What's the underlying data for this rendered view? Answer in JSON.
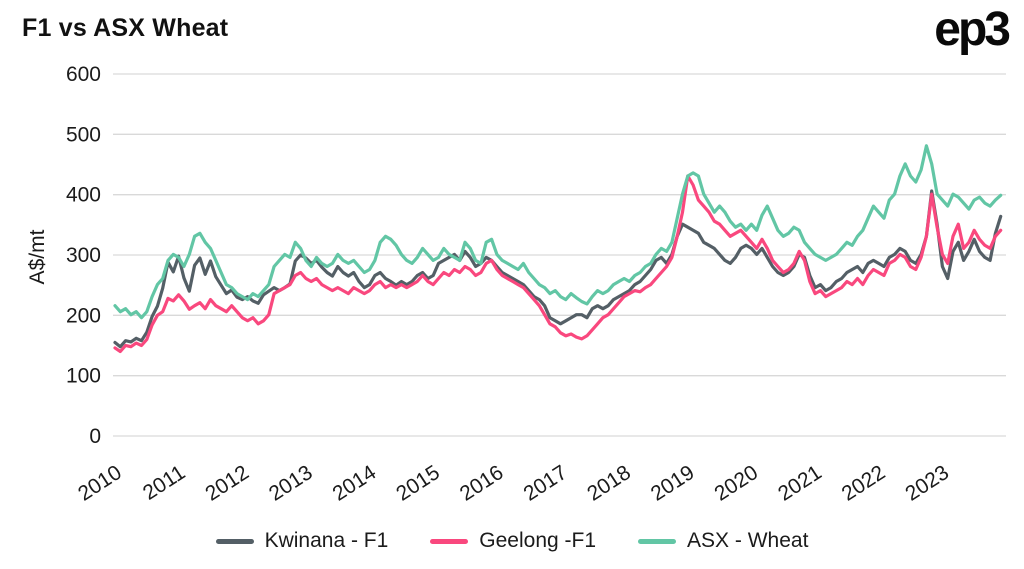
{
  "header": {
    "title": "F1 vs ASX Wheat",
    "logo_text": "ep3"
  },
  "colors": {
    "grid": "#d9d9d9",
    "tick_text": "#1b1b1b",
    "kwinana": "#545f66",
    "geelong": "#f9487e",
    "asx": "#62c6a5"
  },
  "chart_data": {
    "type": "line",
    "title": "F1 vs ASX Wheat",
    "xlabel": "",
    "ylabel": "A$/mt",
    "ylim": [
      0,
      600
    ],
    "yticks": [
      0,
      100,
      200,
      300,
      400,
      500,
      600
    ],
    "xticks": [
      2010,
      2011,
      2012,
      2013,
      2014,
      2015,
      2016,
      2017,
      2018,
      2019,
      2020,
      2021,
      2022,
      2023
    ],
    "grid": true,
    "legend_position": "bottom",
    "x_start_year": 2010,
    "x_points_per_year": 12,
    "series": [
      {
        "name": "Kwinana - F1",
        "color": "#545f66",
        "values": [
          155,
          148,
          158,
          156,
          162,
          158,
          172,
          198,
          215,
          245,
          288,
          272,
          298,
          262,
          240,
          283,
          295,
          268,
          290,
          264,
          250,
          236,
          242,
          230,
          226,
          231,
          224,
          220,
          234,
          240,
          246,
          241,
          246,
          252,
          290,
          300,
          295,
          286,
          291,
          280,
          271,
          265,
          281,
          271,
          265,
          271,
          256,
          246,
          251,
          266,
          271,
          261,
          256,
          250,
          256,
          251,
          256,
          266,
          271,
          261,
          266,
          286,
          291,
          296,
          301,
          291,
          306,
          296,
          281,
          286,
          296,
          291,
          281,
          271,
          266,
          261,
          256,
          251,
          241,
          231,
          226,
          216,
          196,
          191,
          186,
          191,
          196,
          201,
          201,
          196,
          211,
          216,
          211,
          216,
          226,
          231,
          236,
          241,
          251,
          256,
          266,
          276,
          291,
          296,
          286,
          301,
          331,
          351,
          346,
          341,
          336,
          321,
          316,
          311,
          301,
          291,
          286,
          296,
          311,
          316,
          311,
          301,
          311,
          296,
          281,
          271,
          266,
          271,
          281,
          301,
          296,
          266,
          246,
          251,
          241,
          246,
          256,
          261,
          271,
          276,
          281,
          271,
          286,
          291,
          286,
          281,
          296,
          301,
          311,
          306,
          291,
          286,
          301,
          331,
          406,
          351,
          281,
          261,
          306,
          321,
          291,
          306,
          326,
          306,
          296,
          291,
          336,
          364
        ]
      },
      {
        "name": "Geelong -F1",
        "color": "#f9487e",
        "values": [
          146,
          140,
          150,
          148,
          154,
          150,
          160,
          184,
          200,
          206,
          228,
          224,
          234,
          224,
          210,
          216,
          221,
          211,
          226,
          216,
          211,
          206,
          216,
          206,
          196,
          191,
          196,
          186,
          191,
          201,
          236,
          241,
          246,
          251,
          266,
          271,
          261,
          256,
          261,
          251,
          246,
          241,
          246,
          241,
          236,
          246,
          241,
          236,
          241,
          251,
          256,
          246,
          251,
          246,
          251,
          246,
          251,
          256,
          266,
          256,
          251,
          261,
          271,
          266,
          276,
          271,
          281,
          276,
          266,
          271,
          286,
          291,
          276,
          266,
          261,
          256,
          251,
          246,
          236,
          226,
          216,
          201,
          186,
          181,
          171,
          166,
          169,
          164,
          161,
          166,
          176,
          186,
          196,
          201,
          211,
          221,
          231,
          236,
          241,
          239,
          246,
          251,
          261,
          271,
          281,
          296,
          331,
          371,
          431,
          416,
          391,
          381,
          371,
          356,
          351,
          341,
          331,
          336,
          341,
          331,
          321,
          311,
          326,
          311,
          291,
          281,
          271,
          276,
          286,
          306,
          291,
          256,
          236,
          241,
          231,
          236,
          241,
          246,
          256,
          251,
          261,
          251,
          266,
          276,
          271,
          266,
          286,
          291,
          301,
          296,
          281,
          276,
          296,
          331,
          401,
          346,
          301,
          286,
          331,
          351,
          311,
          321,
          341,
          326,
          316,
          311,
          331,
          341
        ]
      },
      {
        "name": "ASX - Wheat",
        "color": "#62c6a5",
        "values": [
          216,
          206,
          211,
          201,
          206,
          196,
          206,
          231,
          251,
          261,
          291,
          301,
          296,
          281,
          301,
          331,
          336,
          321,
          311,
          291,
          271,
          251,
          246,
          236,
          231,
          226,
          236,
          231,
          241,
          251,
          281,
          291,
          301,
          296,
          321,
          311,
          291,
          281,
          296,
          286,
          281,
          286,
          301,
          291,
          286,
          291,
          281,
          271,
          276,
          291,
          321,
          331,
          326,
          316,
          301,
          291,
          286,
          296,
          311,
          301,
          291,
          296,
          311,
          301,
          296,
          291,
          321,
          311,
          291,
          286,
          321,
          326,
          301,
          291,
          286,
          281,
          276,
          286,
          271,
          261,
          251,
          246,
          236,
          241,
          231,
          226,
          236,
          229,
          223,
          219,
          231,
          241,
          236,
          241,
          251,
          256,
          261,
          256,
          266,
          271,
          281,
          286,
          301,
          311,
          306,
          321,
          361,
          401,
          431,
          436,
          431,
          401,
          386,
          371,
          381,
          371,
          356,
          346,
          351,
          341,
          351,
          341,
          366,
          381,
          361,
          341,
          331,
          336,
          346,
          341,
          321,
          311,
          301,
          296,
          291,
          296,
          301,
          311,
          321,
          316,
          331,
          341,
          361,
          381,
          371,
          361,
          391,
          401,
          431,
          451,
          431,
          421,
          441,
          481,
          451,
          401,
          391,
          381,
          401,
          396,
          386,
          376,
          391,
          396,
          386,
          381,
          391,
          399
        ]
      }
    ]
  }
}
